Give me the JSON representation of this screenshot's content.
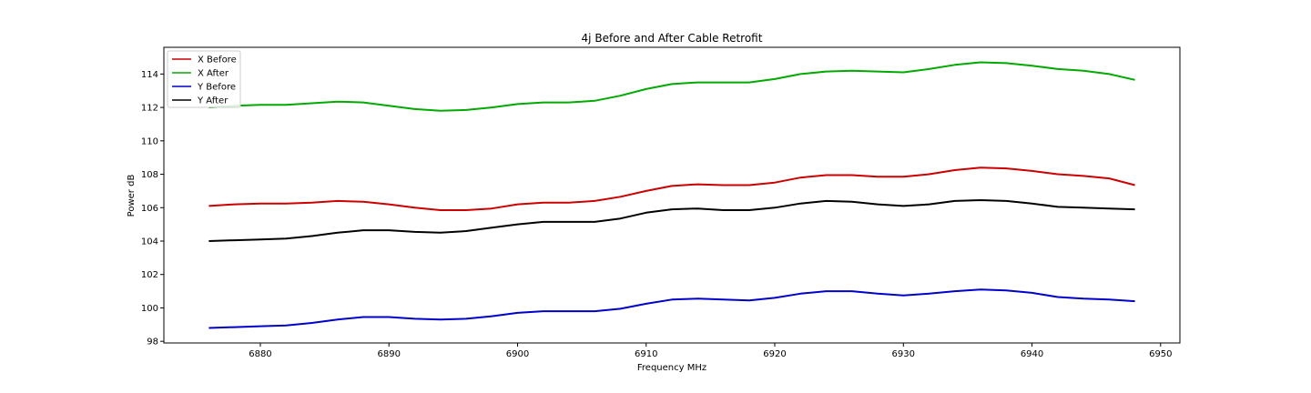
{
  "chart_data": {
    "type": "line",
    "title": "4j Before and After Cable Retrofit",
    "xlabel": "Frequency MHz",
    "ylabel": "Power dB",
    "xlim": [
      6872.5,
      6951.5
    ],
    "ylim": [
      97.9,
      115.6
    ],
    "xticks": [
      6880,
      6890,
      6900,
      6910,
      6920,
      6930,
      6940,
      6950
    ],
    "yticks": [
      98,
      100,
      102,
      104,
      106,
      108,
      110,
      112,
      114
    ],
    "grid": false,
    "legend_position": "top-left",
    "x": [
      6876,
      6878,
      6880,
      6882,
      6884,
      6886,
      6888,
      6890,
      6892,
      6894,
      6896,
      6898,
      6900,
      6902,
      6904,
      6906,
      6908,
      6910,
      6912,
      6914,
      6916,
      6918,
      6920,
      6922,
      6924,
      6926,
      6928,
      6930,
      6932,
      6934,
      6936,
      6938,
      6940,
      6942,
      6944,
      6946,
      6948
    ],
    "series": [
      {
        "name": "X Before",
        "color": "#cc0000",
        "values": [
          106.1,
          106.2,
          106.25,
          106.25,
          106.3,
          106.4,
          106.35,
          106.2,
          106.0,
          105.85,
          105.85,
          105.95,
          106.2,
          106.3,
          106.3,
          106.4,
          106.65,
          107.0,
          107.3,
          107.4,
          107.35,
          107.35,
          107.5,
          107.8,
          107.95,
          107.95,
          107.85,
          107.85,
          108.0,
          108.25,
          108.4,
          108.35,
          108.2,
          108.0,
          107.9,
          107.75,
          107.35
        ]
      },
      {
        "name": "X After",
        "color": "#00aa00",
        "values": [
          112.0,
          112.1,
          112.15,
          112.15,
          112.25,
          112.35,
          112.3,
          112.1,
          111.9,
          111.8,
          111.85,
          112.0,
          112.2,
          112.3,
          112.3,
          112.4,
          112.7,
          113.1,
          113.4,
          113.5,
          113.5,
          113.5,
          113.7,
          114.0,
          114.15,
          114.2,
          114.15,
          114.1,
          114.3,
          114.55,
          114.7,
          114.65,
          114.5,
          114.3,
          114.2,
          114.0,
          113.65
        ]
      },
      {
        "name": "Y Before",
        "color": "#0000cc",
        "values": [
          98.8,
          98.85,
          98.9,
          98.95,
          99.1,
          99.3,
          99.45,
          99.45,
          99.35,
          99.3,
          99.35,
          99.5,
          99.7,
          99.8,
          99.8,
          99.8,
          99.95,
          100.25,
          100.5,
          100.55,
          100.5,
          100.45,
          100.6,
          100.85,
          101.0,
          101.0,
          100.85,
          100.75,
          100.85,
          101.0,
          101.1,
          101.05,
          100.9,
          100.65,
          100.55,
          100.5,
          100.4
        ]
      },
      {
        "name": "Y After",
        "color": "#000000",
        "values": [
          104.0,
          104.05,
          104.1,
          104.15,
          104.3,
          104.5,
          104.65,
          104.65,
          104.55,
          104.5,
          104.6,
          104.8,
          105.0,
          105.15,
          105.15,
          105.15,
          105.35,
          105.7,
          105.9,
          105.95,
          105.85,
          105.85,
          106.0,
          106.25,
          106.4,
          106.35,
          106.2,
          106.1,
          106.2,
          106.4,
          106.45,
          106.4,
          106.25,
          106.05,
          106.0,
          105.95,
          105.9
        ]
      }
    ]
  }
}
